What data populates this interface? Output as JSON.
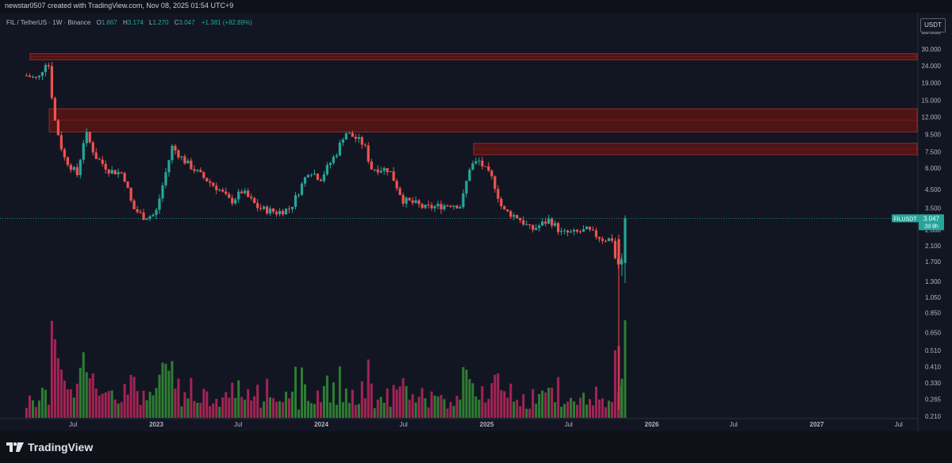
{
  "header": {
    "credit": "newstar0507 created with TradingView.com, Nov 08, 2025 01:54 UTC+9"
  },
  "legend": {
    "symbol": "FIL / TetherUS · 1W · Binance",
    "open_label": "O",
    "open": "1.667",
    "high_label": "H",
    "high": "3.174",
    "low_label": "L",
    "low": "1.270",
    "close_label": "C",
    "close": "3.047",
    "change": "+1.381 (+82.89%)"
  },
  "price_axis": {
    "currency": "USDT",
    "ticks": [
      "38.000",
      "30.000",
      "24.000",
      "19.000",
      "15.000",
      "12.000",
      "9.500",
      "7.500",
      "6.000",
      "4.500",
      "3.500",
      "2.600",
      "2.100",
      "1.700",
      "1.300",
      "1.050",
      "0.850",
      "0.650",
      "0.510",
      "0.410",
      "0.330",
      "0.265",
      "0.210"
    ],
    "last_label": {
      "symbol": "FILUSDT",
      "price": "3.047",
      "countdown": "2d 8h"
    }
  },
  "time_axis": {
    "labels": [
      "Jul",
      "2023",
      "Jul",
      "2024",
      "Jul",
      "2025",
      "Jul",
      "2026",
      "Jul",
      "2027",
      "Jul"
    ]
  },
  "footer": {
    "brand": "TradingView"
  },
  "colors": {
    "up": "#26a69a",
    "down": "#ef5350",
    "vol_up": "#2e7d32",
    "vol_down": "#a32454",
    "zone": "#5b1414",
    "zone_line": "#b22c2c",
    "bg": "#121622"
  },
  "chart_data": {
    "type": "candlestick",
    "title": "FIL / TetherUS · 1W · Binance",
    "y_scale": "log",
    "ylim": [
      0.2,
      40
    ],
    "x_range": [
      "2022-03",
      "2027-10"
    ],
    "resistance_zones": [
      {
        "low": 26.0,
        "high": 28.2
      },
      {
        "low": 9.8,
        "high": 13.4
      },
      {
        "low": 7.2,
        "high": 8.4
      }
    ],
    "path": [
      [
        "2022-03-20",
        21
      ],
      [
        "2022-04-15",
        20
      ],
      [
        "2022-05-06",
        27
      ],
      [
        "2022-05-20",
        12
      ],
      [
        "2022-06-10",
        7
      ],
      [
        "2022-07-10",
        5.5
      ],
      [
        "2022-07-28",
        9.8
      ],
      [
        "2022-08-20",
        7
      ],
      [
        "2022-09-20",
        5.8
      ],
      [
        "2022-10-20",
        5.6
      ],
      [
        "2022-11-10",
        3.5
      ],
      [
        "2022-12-05",
        3.1
      ],
      [
        "2022-12-30",
        3.2
      ],
      [
        "2023-02-05",
        8.0
      ],
      [
        "2023-03-05",
        6.6
      ],
      [
        "2023-04-15",
        5.3
      ],
      [
        "2023-05-20",
        4.5
      ],
      [
        "2023-06-15",
        3.8
      ],
      [
        "2023-07-10",
        4.4
      ],
      [
        "2023-08-15",
        3.5
      ],
      [
        "2023-09-25",
        3.3
      ],
      [
        "2023-10-25",
        3.5
      ],
      [
        "2023-12-05",
        5.9
      ],
      [
        "2023-12-30",
        5.2
      ],
      [
        "2024-02-05",
        7.5
      ],
      [
        "2024-02-22",
        9.8
      ],
      [
        "2024-03-20",
        8.9
      ],
      [
        "2024-04-05",
        8.2
      ],
      [
        "2024-04-20",
        6.0
      ],
      [
        "2024-05-30",
        5.9
      ],
      [
        "2024-06-30",
        3.9
      ],
      [
        "2024-07-30",
        3.7
      ],
      [
        "2024-08-15",
        3.5
      ],
      [
        "2024-09-20",
        3.6
      ],
      [
        "2024-10-15",
        3.7
      ],
      [
        "2024-11-05",
        3.6
      ],
      [
        "2024-11-25",
        6.2
      ],
      [
        "2024-12-15",
        6.6
      ],
      [
        "2025-01-15",
        5.1
      ],
      [
        "2025-02-05",
        3.4
      ],
      [
        "2025-03-10",
        3.1
      ],
      [
        "2025-04-10",
        2.6
      ],
      [
        "2025-05-20",
        3.0
      ],
      [
        "2025-06-15",
        2.5
      ],
      [
        "2025-07-15",
        2.5
      ],
      [
        "2025-08-10",
        2.6
      ],
      [
        "2025-09-15",
        2.3
      ],
      [
        "2025-10-05",
        2.3
      ],
      [
        "2025-10-15",
        1.6
      ],
      [
        "2025-10-30",
        1.75
      ],
      [
        "2025-11-03",
        3.047
      ]
    ],
    "last_candle": {
      "open": 1.667,
      "high": 3.174,
      "low": 1.27,
      "close": 3.047
    },
    "volume_unit": "relative"
  }
}
